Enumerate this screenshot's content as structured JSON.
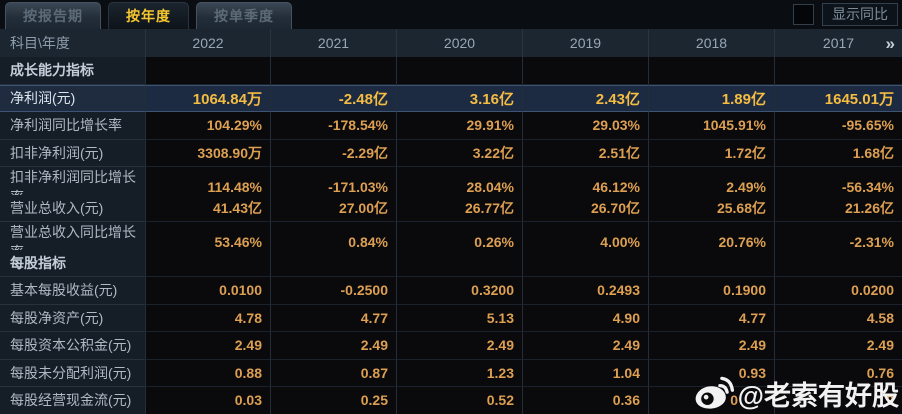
{
  "tabs": [
    {
      "label": "按报告期",
      "active": false
    },
    {
      "label": "按年度",
      "active": true
    },
    {
      "label": "按单季度",
      "active": false
    }
  ],
  "controls": {
    "show_yoy_label": "显示同比",
    "checkbox_checked": false
  },
  "table": {
    "corner_label": "科目\\年度",
    "columns": [
      "2022",
      "2021",
      "2020",
      "2019",
      "2018",
      "2017"
    ],
    "more_icon": "»",
    "rows": [
      {
        "type": "section",
        "label": "成长能力指标"
      },
      {
        "type": "data",
        "highlight": true,
        "label": "净利润(元)",
        "values": [
          "1064.84万",
          "-2.48亿",
          "3.16亿",
          "2.43亿",
          "1.89亿",
          "1645.01万"
        ]
      },
      {
        "type": "data",
        "label": "净利润同比增长率",
        "values": [
          "104.29%",
          "-178.54%",
          "29.91%",
          "29.03%",
          "1045.91%",
          "-95.65%"
        ]
      },
      {
        "type": "data",
        "label": "扣非净利润(元)",
        "values": [
          "3308.90万",
          "-2.29亿",
          "3.22亿",
          "2.51亿",
          "1.72亿",
          "1.68亿"
        ]
      },
      {
        "type": "data",
        "label": "扣非净利润同比增长率",
        "values": [
          "114.48%",
          "-171.03%",
          "28.04%",
          "46.12%",
          "2.49%",
          "-56.34%"
        ]
      },
      {
        "type": "data",
        "label": "营业总收入(元)",
        "values": [
          "41.43亿",
          "27.00亿",
          "26.77亿",
          "26.70亿",
          "25.68亿",
          "21.26亿"
        ]
      },
      {
        "type": "data",
        "label": "营业总收入同比增长率",
        "values": [
          "53.46%",
          "0.84%",
          "0.26%",
          "4.00%",
          "20.76%",
          "-2.31%"
        ]
      },
      {
        "type": "section",
        "label": "每股指标"
      },
      {
        "type": "data",
        "label": "基本每股收益(元)",
        "values": [
          "0.0100",
          "-0.2500",
          "0.3200",
          "0.2493",
          "0.1900",
          "0.0200"
        ]
      },
      {
        "type": "data",
        "label": "每股净资产(元)",
        "values": [
          "4.78",
          "4.77",
          "5.13",
          "4.90",
          "4.77",
          "4.58"
        ]
      },
      {
        "type": "data",
        "label": "每股资本公积金(元)",
        "values": [
          "2.49",
          "2.49",
          "2.49",
          "2.49",
          "2.49",
          "2.49"
        ]
      },
      {
        "type": "data",
        "label": "每股未分配利润(元)",
        "values": [
          "0.88",
          "0.87",
          "1.23",
          "1.04",
          "0.93",
          "0.76"
        ]
      },
      {
        "type": "data",
        "label": "每股经营现金流(元)",
        "values": [
          "0.03",
          "0.25",
          "0.52",
          "0.36",
          "0",
          "9"
        ],
        "cell_classes": [
          "",
          "",
          "",
          "",
          "frag-a",
          ""
        ]
      }
    ]
  },
  "watermark": {
    "text": "@老索有好股",
    "icon": "weibo-icon"
  },
  "colors": {
    "accent_gold": "#f6c62f",
    "value_orange": "#dd9f52",
    "highlight_row_bg": "#1c2b42",
    "header_bg": "#1c2631"
  }
}
